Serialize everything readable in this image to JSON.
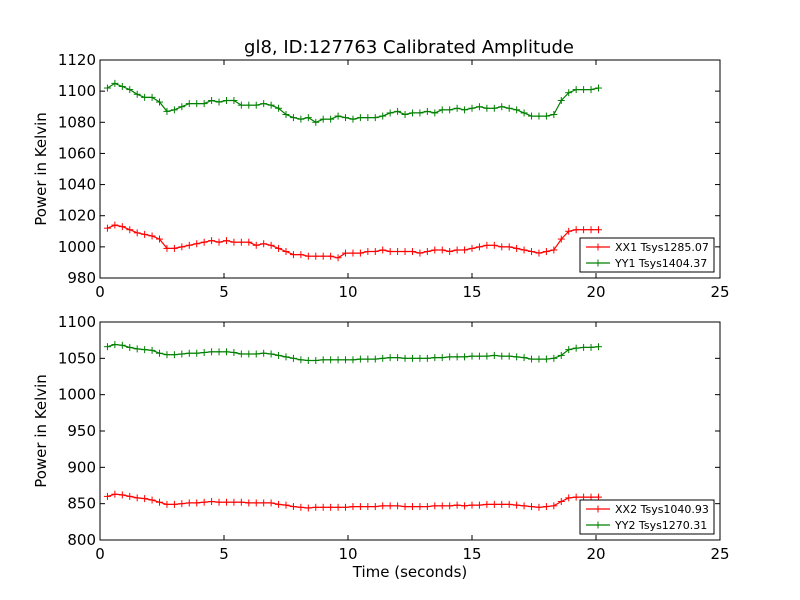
{
  "figure_title": "gl8, ID:127763 Calibrated Amplitude",
  "chart_data": [
    {
      "type": "line",
      "title": "gl8, ID:127763 Calibrated Amplitude",
      "xlabel": "",
      "ylabel": "Power in Kelvin",
      "xlim": [
        0,
        25
      ],
      "ylim": [
        980,
        1120
      ],
      "xticks": [
        "0",
        "5",
        "10",
        "15",
        "20",
        "25"
      ],
      "yticks": [
        "980",
        "1000",
        "1020",
        "1040",
        "1060",
        "1080",
        "1100",
        "1120"
      ],
      "legend_placement": "lower-right",
      "grid": false,
      "series": [
        {
          "name": "XX1 Tsys1285.07",
          "color": "#ff0000",
          "x": [
            0.3,
            0.6,
            0.9,
            1.2,
            1.5,
            1.8,
            2.1,
            2.4,
            2.7,
            3.0,
            3.3,
            3.6,
            3.9,
            4.2,
            4.5,
            4.8,
            5.1,
            5.4,
            5.7,
            6.0,
            6.3,
            6.6,
            6.9,
            7.2,
            7.5,
            7.8,
            8.1,
            8.4,
            8.7,
            9.0,
            9.3,
            9.6,
            9.9,
            10.2,
            10.5,
            10.8,
            11.1,
            11.4,
            11.7,
            12.0,
            12.3,
            12.6,
            12.9,
            13.2,
            13.5,
            13.8,
            14.1,
            14.4,
            14.7,
            15.0,
            15.3,
            15.6,
            15.9,
            16.2,
            16.5,
            16.8,
            17.1,
            17.4,
            17.7,
            18.0,
            18.3,
            18.6,
            18.9,
            19.2,
            19.5,
            19.8,
            20.1
          ],
          "y": [
            1012,
            1014,
            1013,
            1011,
            1009,
            1008,
            1007,
            1005,
            999,
            999,
            1000,
            1001,
            1002,
            1003,
            1004,
            1003,
            1004,
            1003,
            1003,
            1003,
            1001,
            1002,
            1001,
            999,
            997,
            995,
            995,
            994,
            994,
            994,
            994,
            993,
            996,
            996,
            996,
            997,
            997,
            998,
            997,
            997,
            997,
            997,
            996,
            997,
            998,
            998,
            997,
            998,
            998,
            999,
            1000,
            1001,
            1001,
            1000,
            1000,
            999,
            998,
            997,
            996,
            997,
            998,
            1005,
            1010,
            1011,
            1011,
            1011,
            1011
          ]
        },
        {
          "name": "YY1 Tsys1404.37",
          "color": "#008000",
          "x": [
            0.3,
            0.6,
            0.9,
            1.2,
            1.5,
            1.8,
            2.1,
            2.4,
            2.7,
            3.0,
            3.3,
            3.6,
            3.9,
            4.2,
            4.5,
            4.8,
            5.1,
            5.4,
            5.7,
            6.0,
            6.3,
            6.6,
            6.9,
            7.2,
            7.5,
            7.8,
            8.1,
            8.4,
            8.7,
            9.0,
            9.3,
            9.6,
            9.9,
            10.2,
            10.5,
            10.8,
            11.1,
            11.4,
            11.7,
            12.0,
            12.3,
            12.6,
            12.9,
            13.2,
            13.5,
            13.8,
            14.1,
            14.4,
            14.7,
            15.0,
            15.3,
            15.6,
            15.9,
            16.2,
            16.5,
            16.8,
            17.1,
            17.4,
            17.7,
            18.0,
            18.3,
            18.6,
            18.9,
            19.2,
            19.5,
            19.8,
            20.1
          ],
          "y": [
            1102,
            1105,
            1103,
            1101,
            1098,
            1096,
            1096,
            1093,
            1087,
            1088,
            1090,
            1092,
            1092,
            1092,
            1094,
            1093,
            1094,
            1094,
            1091,
            1091,
            1091,
            1092,
            1091,
            1089,
            1085,
            1083,
            1082,
            1083,
            1080,
            1082,
            1082,
            1084,
            1083,
            1082,
            1083,
            1083,
            1083,
            1084,
            1086,
            1087,
            1085,
            1086,
            1086,
            1087,
            1086,
            1088,
            1088,
            1089,
            1088,
            1089,
            1090,
            1089,
            1089,
            1090,
            1089,
            1088,
            1086,
            1084,
            1084,
            1084,
            1085,
            1094,
            1099,
            1101,
            1101,
            1101,
            1102
          ]
        }
      ]
    },
    {
      "type": "line",
      "title": "",
      "xlabel": "Time (seconds)",
      "ylabel": "Power in Kelvin",
      "xlim": [
        0,
        25
      ],
      "ylim": [
        800,
        1100
      ],
      "xticks": [
        "0",
        "5",
        "10",
        "15",
        "20",
        "25"
      ],
      "yticks": [
        "800",
        "850",
        "900",
        "950",
        "1000",
        "1050",
        "1100"
      ],
      "legend_placement": "lower-right",
      "grid": false,
      "series": [
        {
          "name": "XX2 Tsys1040.93",
          "color": "#ff0000",
          "x": [
            0.3,
            0.6,
            0.9,
            1.2,
            1.5,
            1.8,
            2.1,
            2.4,
            2.7,
            3.0,
            3.3,
            3.6,
            3.9,
            4.2,
            4.5,
            4.8,
            5.1,
            5.4,
            5.7,
            6.0,
            6.3,
            6.6,
            6.9,
            7.2,
            7.5,
            7.8,
            8.1,
            8.4,
            8.7,
            9.0,
            9.3,
            9.6,
            9.9,
            10.2,
            10.5,
            10.8,
            11.1,
            11.4,
            11.7,
            12.0,
            12.3,
            12.6,
            12.9,
            13.2,
            13.5,
            13.8,
            14.1,
            14.4,
            14.7,
            15.0,
            15.3,
            15.6,
            15.9,
            16.2,
            16.5,
            16.8,
            17.1,
            17.4,
            17.7,
            18.0,
            18.3,
            18.6,
            18.9,
            19.2,
            19.5,
            19.8,
            20.1
          ],
          "y": [
            860,
            863,
            862,
            860,
            858,
            857,
            855,
            852,
            849,
            849,
            850,
            851,
            851,
            852,
            853,
            852,
            852,
            852,
            852,
            851,
            851,
            851,
            851,
            849,
            848,
            846,
            845,
            844,
            845,
            845,
            845,
            845,
            845,
            846,
            846,
            846,
            846,
            847,
            847,
            847,
            846,
            846,
            846,
            846,
            847,
            847,
            847,
            848,
            847,
            848,
            848,
            849,
            849,
            849,
            849,
            848,
            847,
            846,
            845,
            846,
            847,
            853,
            858,
            859,
            859,
            859,
            859
          ]
        },
        {
          "name": "YY2 Tsys1270.31",
          "color": "#008000",
          "x": [
            0.3,
            0.6,
            0.9,
            1.2,
            1.5,
            1.8,
            2.1,
            2.4,
            2.7,
            3.0,
            3.3,
            3.6,
            3.9,
            4.2,
            4.5,
            4.8,
            5.1,
            5.4,
            5.7,
            6.0,
            6.3,
            6.6,
            6.9,
            7.2,
            7.5,
            7.8,
            8.1,
            8.4,
            8.7,
            9.0,
            9.3,
            9.6,
            9.9,
            10.2,
            10.5,
            10.8,
            11.1,
            11.4,
            11.7,
            12.0,
            12.3,
            12.6,
            12.9,
            13.2,
            13.5,
            13.8,
            14.1,
            14.4,
            14.7,
            15.0,
            15.3,
            15.6,
            15.9,
            16.2,
            16.5,
            16.8,
            17.1,
            17.4,
            17.7,
            18.0,
            18.3,
            18.6,
            18.9,
            19.2,
            19.5,
            19.8,
            20.1
          ],
          "y": [
            1066,
            1069,
            1068,
            1065,
            1063,
            1062,
            1061,
            1057,
            1055,
            1055,
            1056,
            1057,
            1057,
            1058,
            1059,
            1059,
            1059,
            1058,
            1056,
            1056,
            1056,
            1057,
            1056,
            1054,
            1052,
            1050,
            1048,
            1047,
            1047,
            1048,
            1048,
            1048,
            1048,
            1048,
            1049,
            1049,
            1049,
            1050,
            1051,
            1051,
            1050,
            1050,
            1050,
            1050,
            1051,
            1051,
            1052,
            1052,
            1052,
            1053,
            1053,
            1053,
            1054,
            1053,
            1053,
            1052,
            1051,
            1049,
            1049,
            1049,
            1050,
            1054,
            1062,
            1064,
            1065,
            1065,
            1066
          ]
        }
      ]
    }
  ]
}
